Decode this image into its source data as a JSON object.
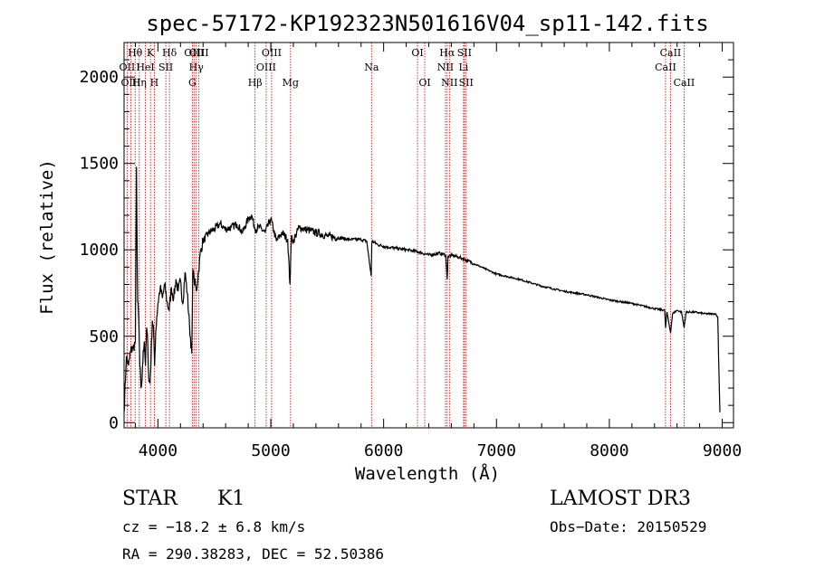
{
  "chart_data": {
    "type": "line",
    "title": "spec-57172-KP192323N501616V04_sp11-142.fits",
    "xlabel": "Wavelength (Å)",
    "ylabel": "Flux (relative)",
    "xlim": [
      3700,
      9100
    ],
    "ylim": [
      -30,
      2200
    ],
    "xticks": [
      4000,
      5000,
      6000,
      7000,
      8000,
      9000
    ],
    "yticks": [
      0,
      500,
      1000,
      1500,
      2000
    ],
    "series": [
      {
        "name": "spectrum",
        "x": [
          3700,
          3720,
          3740,
          3760,
          3780,
          3800,
          3810,
          3820,
          3830,
          3840,
          3850,
          3860,
          3870,
          3880,
          3890,
          3900,
          3910,
          3920,
          3930,
          3940,
          3950,
          3960,
          3970,
          3980,
          3990,
          4000,
          4020,
          4040,
          4060,
          4080,
          4100,
          4120,
          4140,
          4160,
          4180,
          4200,
          4220,
          4240,
          4260,
          4280,
          4300,
          4310,
          4320,
          4340,
          4360,
          4380,
          4400,
          4450,
          4500,
          4550,
          4600,
          4650,
          4700,
          4750,
          4800,
          4830,
          4860,
          4900,
          4950,
          5000,
          5050,
          5100,
          5150,
          5170,
          5183,
          5200,
          5250,
          5300,
          5400,
          5500,
          5600,
          5700,
          5800,
          5850,
          5890,
          5895,
          5900,
          5950,
          6000,
          6100,
          6200,
          6300,
          6400,
          6500,
          6550,
          6563,
          6570,
          6600,
          6700,
          6800,
          6900,
          7000,
          7200,
          7400,
          7600,
          7800,
          8000,
          8200,
          8400,
          8490,
          8498,
          8510,
          8542,
          8560,
          8600,
          8640,
          8662,
          8680,
          8750,
          8850,
          8940,
          8960,
          8980
        ],
        "values": [
          60,
          380,
          330,
          420,
          430,
          470,
          1480,
          700,
          600,
          330,
          200,
          250,
          420,
          470,
          330,
          550,
          450,
          240,
          230,
          380,
          590,
          560,
          330,
          520,
          610,
          690,
          780,
          720,
          800,
          700,
          650,
          780,
          720,
          830,
          760,
          820,
          690,
          870,
          750,
          560,
          400,
          890,
          830,
          760,
          880,
          1000,
          1050,
          1100,
          1120,
          1150,
          1120,
          1130,
          1150,
          1100,
          1180,
          1200,
          1120,
          1130,
          1100,
          1180,
          1050,
          1100,
          1060,
          800,
          1080,
          1050,
          1130,
          1120,
          1100,
          1080,
          1070,
          1060,
          1060,
          1050,
          850,
          1040,
          1050,
          1030,
          1020,
          1010,
          1000,
          990,
          970,
          980,
          970,
          830,
          960,
          970,
          950,
          920,
          890,
          860,
          830,
          790,
          760,
          740,
          710,
          690,
          660,
          650,
          550,
          640,
          520,
          630,
          650,
          640,
          550,
          640,
          640,
          630,
          630,
          610,
          60
        ]
      }
    ],
    "lines": [
      {
        "label": "Hθ",
        "x": 3798,
        "row": 0
      },
      {
        "label": "OII",
        "x": 3727,
        "row": 1
      },
      {
        "label": "OIII",
        "x": 3760,
        "row": 2
      },
      {
        "label": "Hη",
        "x": 3835,
        "row": 2
      },
      {
        "label": "HeI",
        "x": 3889,
        "row": 1
      },
      {
        "label": "K",
        "x": 3934,
        "row": 0
      },
      {
        "label": "H",
        "x": 3968,
        "row": 2
      },
      {
        "label": "SII",
        "x": 4070,
        "row": 1
      },
      {
        "label": "Hδ",
        "x": 4102,
        "row": 0
      },
      {
        "label": "G",
        "x": 4305,
        "row": 2
      },
      {
        "label": "OIII",
        "x": 4320,
        "row": 0
      },
      {
        "label": "Hγ",
        "x": 4340,
        "row": 1
      },
      {
        "label": "OIII",
        "x": 4363,
        "row": 0
      },
      {
        "label": "Hβ",
        "x": 4861,
        "row": 2
      },
      {
        "label": "OIII",
        "x": 4959,
        "row": 1
      },
      {
        "label": "OIII",
        "x": 5007,
        "row": 0
      },
      {
        "label": "Mg",
        "x": 5175,
        "row": 2
      },
      {
        "label": "Na",
        "x": 5893,
        "row": 1
      },
      {
        "label": "OI",
        "x": 6300,
        "row": 0
      },
      {
        "label": "OI",
        "x": 6364,
        "row": 2
      },
      {
        "label": "NII",
        "x": 6548,
        "row": 1
      },
      {
        "label": "Hα",
        "x": 6563,
        "row": 0
      },
      {
        "label": "NII",
        "x": 6583,
        "row": 2
      },
      {
        "label": "Li",
        "x": 6708,
        "row": 1
      },
      {
        "label": "SII",
        "x": 6716,
        "row": 0
      },
      {
        "label": "SII",
        "x": 6731,
        "row": 2
      },
      {
        "label": "CaII",
        "x": 8498,
        "row": 1
      },
      {
        "label": "CaII",
        "x": 8542,
        "row": 0
      },
      {
        "label": "CaII",
        "x": 8662,
        "row": 2
      }
    ]
  },
  "footer": {
    "object_class": "STAR",
    "subclass": "K1",
    "survey": "LAMOST DR3",
    "cz": "cz = −18.2 ± 6.8 km/s",
    "obs_date": "Obs−Date: 20150529",
    "coords": "RA = 290.38283, DEC =  52.50386"
  }
}
